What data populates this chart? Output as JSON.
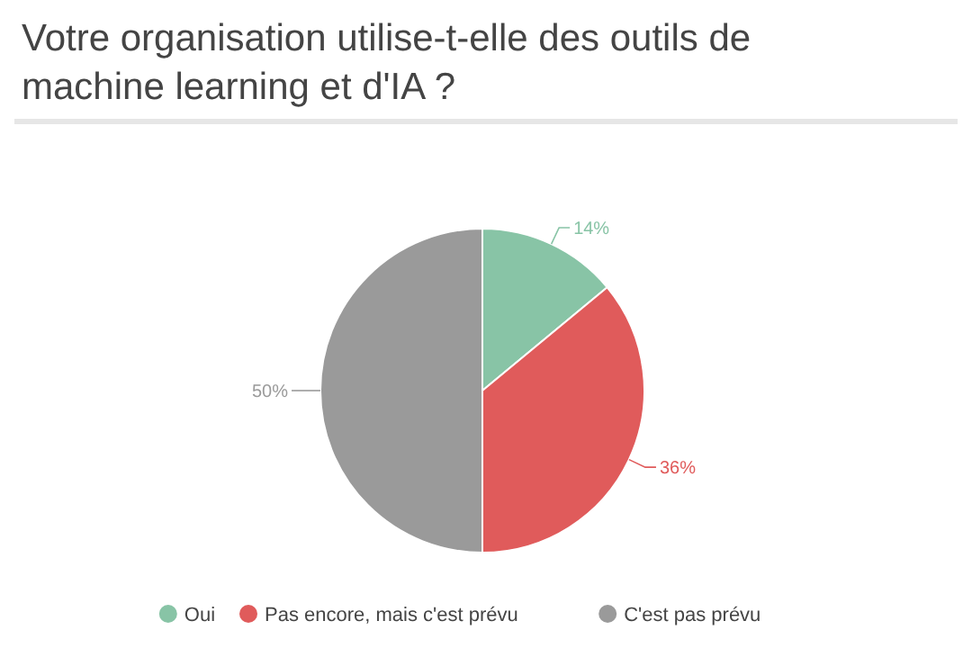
{
  "chart_data": {
    "type": "pie",
    "title": "Votre organisation utilise-t-elle des outils de machine learning et d'IA ?",
    "categories": [
      "Oui",
      "Pas encore, mais c'est prévu",
      "C'est pas prévu"
    ],
    "values": [
      14,
      36,
      50
    ],
    "value_labels": [
      "14%",
      "36%",
      "50%"
    ],
    "colors": [
      "#88c4a6",
      "#e05b5b",
      "#9a9a9a"
    ],
    "legend": "bottom"
  }
}
